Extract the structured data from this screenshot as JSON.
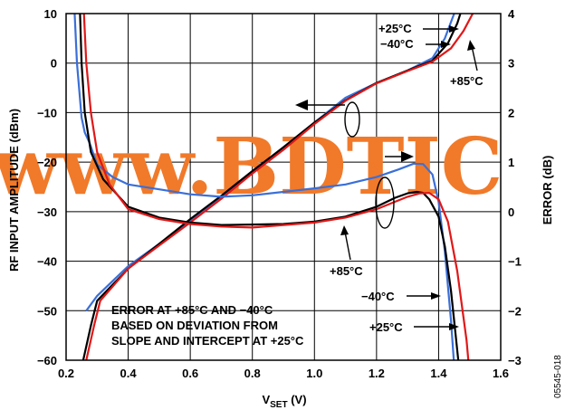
{
  "watermark": "www.BDTIC",
  "figure_id": "05545-018",
  "chart_data": {
    "type": "line",
    "xlabel_main": "V",
    "xlabel_sub": "SET",
    "xlabel_unit": " (V)",
    "ylabel_left": "RF INPUT AMPLITUDE (dBm)",
    "ylabel_right": "ERROR (dB)",
    "xlim": [
      0.2,
      1.6
    ],
    "ylim_left": [
      -60,
      10
    ],
    "ylim_right": [
      -3,
      4
    ],
    "x_ticks": [
      "0.2",
      "0.4",
      "0.6",
      "0.8",
      "1.0",
      "1.2",
      "1.4",
      "1.6"
    ],
    "y_ticks_left": [
      "10",
      "0",
      "−10",
      "−20",
      "−30",
      "−40",
      "−50",
      "−60"
    ],
    "y_ticks_right": [
      "4",
      "3",
      "2",
      "1",
      "0",
      "−1",
      "−2",
      "−3"
    ],
    "grid": true,
    "series_colors": {
      "25C": "#3a6fd8",
      "minus40C": "#000000",
      "85C": "#e01818"
    },
    "transfer_series": [
      {
        "id": "25C",
        "x": [
          0.265,
          0.3,
          0.4,
          0.5,
          0.6,
          0.7,
          0.8,
          0.9,
          1.0,
          1.1,
          1.2,
          1.3,
          1.38,
          1.42,
          1.45,
          1.465
        ],
        "y": [
          -50,
          -47,
          -41,
          -36.5,
          -32,
          -27,
          -22,
          -17,
          -12,
          -7,
          -4,
          -1.5,
          1,
          5,
          10,
          15
        ]
      },
      {
        "id": "minus40C",
        "x": [
          0.255,
          0.28,
          0.3,
          0.4,
          0.5,
          0.6,
          0.7,
          0.8,
          0.9,
          1.0,
          1.1,
          1.2,
          1.3,
          1.38,
          1.43,
          1.46,
          1.48
        ],
        "y": [
          -60,
          -53,
          -48,
          -41.5,
          -36.5,
          -31.5,
          -26.8,
          -21.8,
          -17,
          -12,
          -7.5,
          -4,
          -1.5,
          0.5,
          4,
          8,
          12
        ]
      },
      {
        "id": "85C",
        "x": [
          0.265,
          0.29,
          0.31,
          0.4,
          0.5,
          0.6,
          0.7,
          0.8,
          0.9,
          1.0,
          1.1,
          1.2,
          1.3,
          1.38,
          1.44,
          1.48,
          1.51
        ],
        "y": [
          -60,
          -53,
          -48,
          -41.5,
          -36.8,
          -32.2,
          -27.4,
          -22.3,
          -17.5,
          -12.3,
          -7.6,
          -4.1,
          -1.6,
          0.3,
          3,
          6.5,
          10
        ]
      }
    ],
    "error_series": [
      {
        "id": "25C",
        "x": [
          0.22,
          0.235,
          0.25,
          0.26,
          0.275,
          0.3,
          0.35,
          0.4,
          0.5,
          0.6,
          0.7,
          0.8,
          0.9,
          1.0,
          1.1,
          1.2,
          1.27,
          1.32,
          1.35,
          1.38,
          1.4,
          1.42,
          1.44,
          1.46
        ],
        "y": [
          5,
          3,
          1.9,
          1.6,
          1.4,
          0.95,
          0.7,
          0.55,
          0.45,
          0.35,
          0.3,
          0.33,
          0.4,
          0.47,
          0.55,
          0.7,
          0.85,
          0.97,
          0.96,
          0.75,
          0.2,
          -0.8,
          -2.2,
          -4
        ]
      },
      {
        "id": "minus40C",
        "x": [
          0.24,
          0.25,
          0.26,
          0.28,
          0.32,
          0.4,
          0.5,
          0.6,
          0.7,
          0.8,
          0.9,
          1.0,
          1.1,
          1.2,
          1.26,
          1.3,
          1.33,
          1.35,
          1.37,
          1.4,
          1.42,
          1.44,
          1.46,
          1.48
        ],
        "y": [
          5,
          3,
          2,
          1.2,
          0.65,
          0.1,
          -0.12,
          -0.22,
          -0.27,
          -0.26,
          -0.25,
          -0.2,
          -0.1,
          0.1,
          0.28,
          0.37,
          0.4,
          0.38,
          0.25,
          -0.1,
          -0.7,
          -1.6,
          -2.8,
          -4
        ]
      },
      {
        "id": "85C",
        "x": [
          0.25,
          0.265,
          0.28,
          0.3,
          0.34,
          0.4,
          0.5,
          0.6,
          0.7,
          0.8,
          0.9,
          1.0,
          1.1,
          1.2,
          1.26,
          1.3,
          1.34,
          1.37,
          1.4,
          1.43,
          1.46,
          1.49,
          1.51
        ],
        "y": [
          5,
          3,
          2,
          1.2,
          0.55,
          0.05,
          -0.15,
          -0.25,
          -0.3,
          -0.32,
          -0.27,
          -0.22,
          -0.12,
          0.05,
          0.2,
          0.3,
          0.37,
          0.38,
          0.25,
          -0.2,
          -1.2,
          -2.6,
          -4
        ]
      }
    ],
    "annotations": {
      "t25_top": "+25°C",
      "t40_top": "−40°C",
      "t85_top": "+85°C",
      "t85_mid": "+85°C",
      "t40_bottom": "−40°C",
      "t25_bottom": "+25°C",
      "note_1": "ERROR AT +85°C AND −40°C",
      "note_2": "BASED ON DEVIATION FROM",
      "note_3": "SLOPE AND INTERCEPT AT +25°C"
    }
  }
}
